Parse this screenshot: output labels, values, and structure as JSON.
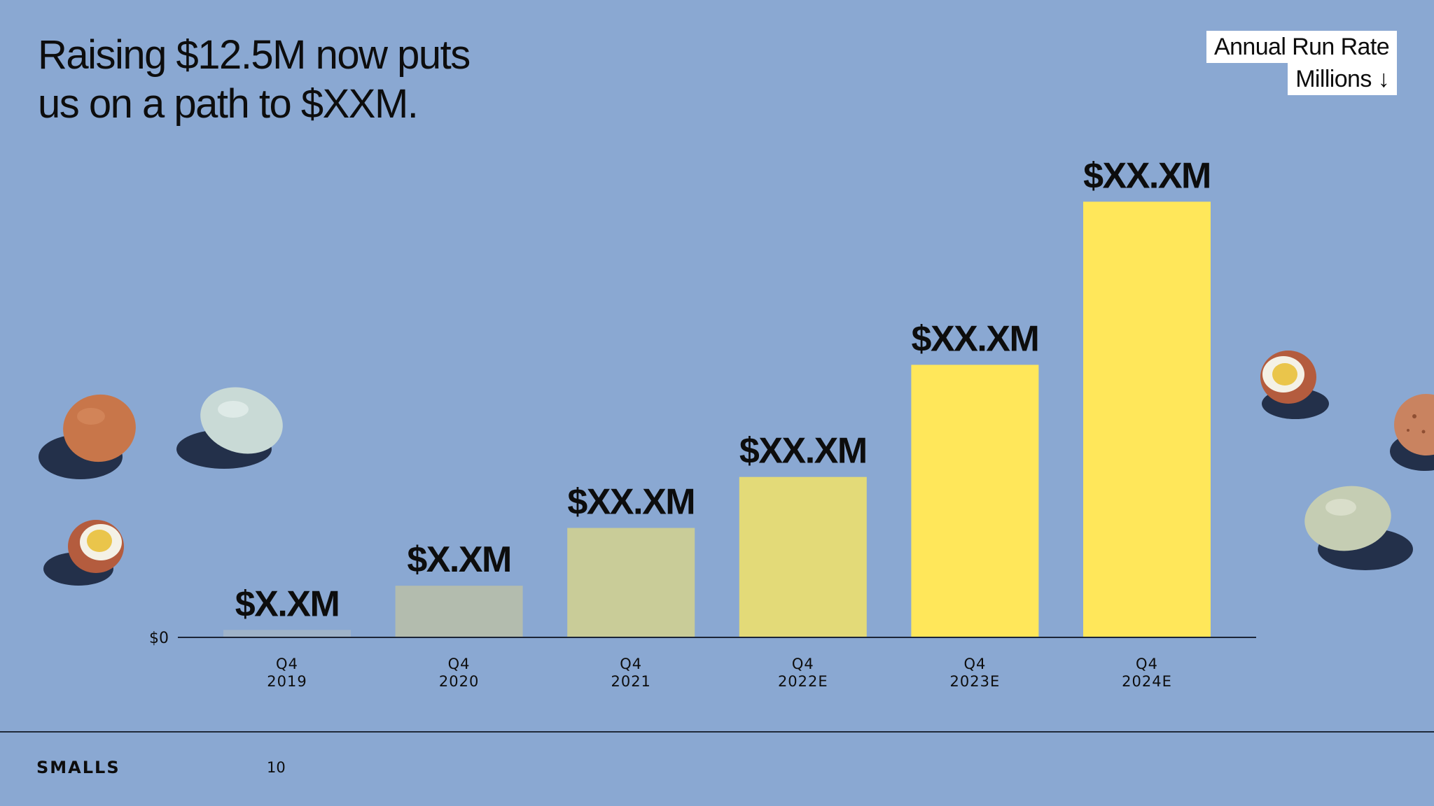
{
  "headline": {
    "line1": "Raising $12.5M now puts",
    "line2": "us on a path to $XXM."
  },
  "legend": {
    "line1": "Annual Run Rate",
    "line2": "Millions ↓"
  },
  "chart_data": {
    "type": "bar",
    "categories": [
      {
        "top": "Q4",
        "bottom": "2019"
      },
      {
        "top": "Q4",
        "bottom": "2020"
      },
      {
        "top": "Q4",
        "bottom": "2021"
      },
      {
        "top": "Q4",
        "bottom": "2022E"
      },
      {
        "top": "Q4",
        "bottom": "2023E"
      },
      {
        "top": "Q4",
        "bottom": "2024E"
      }
    ],
    "values": [
      0.2,
      1.5,
      3.2,
      4.7,
      8.0,
      12.8
    ],
    "value_labels": [
      "$X.XM",
      "$X.XM",
      "$XX.XM",
      "$XX.XM",
      "$XX.XM",
      "$XX.XM"
    ],
    "bar_colors": [
      "#9FB3C9",
      "#B3BCAE",
      "#C9CC98",
      "#E3DA78",
      "#FFE75A",
      "#FFE75A"
    ],
    "y_axis_label": "$0",
    "ylim": [
      0,
      14
    ],
    "grid": false,
    "legend_position": "top-right"
  },
  "footer": {
    "brand": "SMALLS",
    "page_number": "10"
  },
  "colors": {
    "background": "#8AA8D2",
    "accent": "#FFE75A"
  },
  "decorations": [
    "brown-egg",
    "blue-egg",
    "halved-egg",
    "halved-egg-right",
    "speckled-egg",
    "green-egg"
  ]
}
